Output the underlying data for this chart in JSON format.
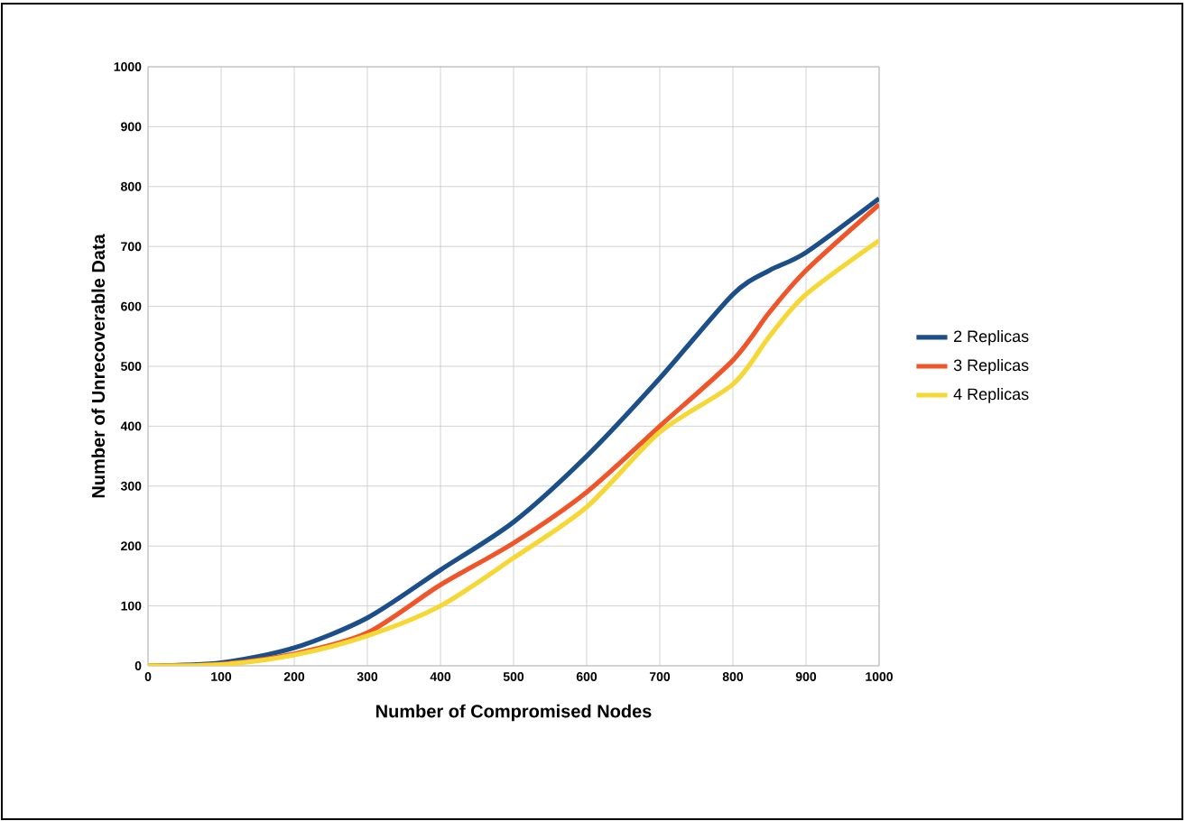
{
  "chart_data": {
    "type": "line",
    "xlabel": "Number of Compromised Nodes",
    "ylabel": "Number of Unrecoverable Data",
    "x": [
      0,
      100,
      200,
      300,
      400,
      500,
      600,
      700,
      800,
      850,
      900,
      1000
    ],
    "series": [
      {
        "name": "2 Replicas",
        "color": "#1c4f8a",
        "values": [
          0,
          5,
          30,
          80,
          160,
          240,
          350,
          480,
          620,
          660,
          690,
          780
        ]
      },
      {
        "name": "3 Replicas",
        "color": "#f0552a",
        "values": [
          0,
          3,
          20,
          55,
          135,
          205,
          290,
          400,
          510,
          590,
          660,
          770
        ]
      },
      {
        "name": "4 Replicas",
        "color": "#f5d735",
        "values": [
          0,
          2,
          18,
          50,
          100,
          180,
          265,
          390,
          470,
          550,
          620,
          710
        ]
      }
    ],
    "xlim": [
      0,
      1000
    ],
    "ylim": [
      0,
      1000
    ],
    "xticks": [
      0,
      100,
      200,
      300,
      400,
      500,
      600,
      700,
      800,
      900,
      1000
    ],
    "yticks": [
      0,
      100,
      200,
      300,
      400,
      500,
      600,
      700,
      800,
      900,
      1000
    ],
    "grid": true,
    "legend": "right",
    "marker": "none",
    "line_style": "solid"
  }
}
